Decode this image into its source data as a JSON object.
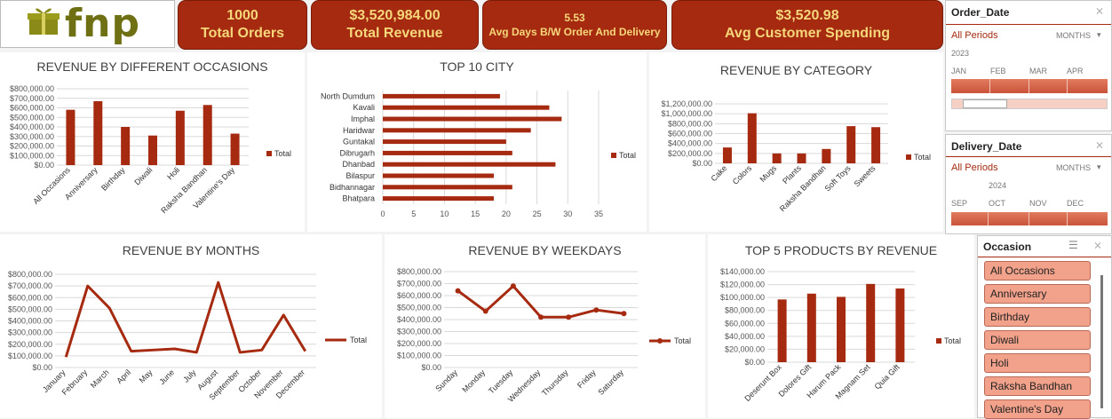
{
  "logo": {
    "text": "fnp"
  },
  "kpis": [
    {
      "value": "1000",
      "label": "Total Orders"
    },
    {
      "value": "$3,520,984.00",
      "label": "Total Revenue"
    },
    {
      "value": "5.53",
      "label": "Avg Days B/W Order And Delivery"
    },
    {
      "value": "$3,520.98",
      "label": "Avg Customer Spending"
    }
  ],
  "colors": {
    "accent": "#a52a10",
    "kpi_text": "#f5d77a",
    "slicer_fill": "#f2a18a"
  },
  "chart_data": [
    {
      "id": "occasions",
      "type": "bar",
      "title": "REVENUE BY DIFFERENT OCCASIONS",
      "categories": [
        "All Occasions",
        "Anniversary",
        "Birthday",
        "Diwali",
        "Holi",
        "Raksha Bandhan",
        "Valentine's Day"
      ],
      "series": [
        {
          "name": "Total",
          "values": [
            580000,
            670000,
            400000,
            310000,
            570000,
            630000,
            330000
          ]
        }
      ],
      "ylim": [
        0,
        800000
      ],
      "yticks": [
        "$0.00",
        "$100,000.00",
        "$200,000.00",
        "$300,000.00",
        "$400,000.00",
        "$500,000.00",
        "$600,000.00",
        "$700,000.00",
        "$800,000.00"
      ],
      "legend": "right"
    },
    {
      "id": "city",
      "type": "bar",
      "orientation": "horizontal",
      "title": "TOP 10 CITY",
      "categories": [
        "North Dumdum",
        "Kavali",
        "Imphal",
        "Haridwar",
        "Guntakal",
        "Dibrugarh",
        "Dhanbad",
        "Bilaspur",
        "Bidhannagar",
        "Bhatpara"
      ],
      "series": [
        {
          "name": "Total",
          "values": [
            19,
            27,
            29,
            24,
            20,
            21,
            28,
            18,
            21,
            18
          ]
        }
      ],
      "xlim": [
        0,
        35
      ],
      "xticks": [
        "0",
        "5",
        "10",
        "15",
        "20",
        "25",
        "30",
        "35"
      ],
      "legend": "right"
    },
    {
      "id": "category",
      "type": "bar",
      "title": "REVENUE BY CATEGORY",
      "categories": [
        "Cake",
        "Colors",
        "Mugs",
        "Plants",
        "Raksha Bandhan",
        "Soft Toys",
        "Sweets"
      ],
      "series": [
        {
          "name": "Total",
          "values": [
            320000,
            1010000,
            200000,
            200000,
            290000,
            750000,
            730000
          ]
        }
      ],
      "ylim": [
        0,
        1200000
      ],
      "yticks": [
        "$0.00",
        "$200,000.00",
        "$400,000.00",
        "$600,000.00",
        "$800,000.00",
        "$1,000,000.00",
        "$1,200,000.00"
      ],
      "legend": "right"
    },
    {
      "id": "months",
      "type": "line",
      "title": "REVENUE BY MONTHS",
      "categories": [
        "January",
        "February",
        "March",
        "April",
        "May",
        "June",
        "July",
        "August",
        "September",
        "October",
        "November",
        "December"
      ],
      "series": [
        {
          "name": "Total",
          "values": [
            90000,
            700000,
            510000,
            140000,
            150000,
            160000,
            130000,
            730000,
            130000,
            150000,
            450000,
            140000
          ]
        }
      ],
      "ylim": [
        0,
        800000
      ],
      "yticks": [
        "$0.00",
        "$100,000.00",
        "$200,000.00",
        "$300,000.00",
        "$400,000.00",
        "$500,000.00",
        "$600,000.00",
        "$700,000.00",
        "$800,000.00"
      ],
      "markers": false,
      "legend": "right"
    },
    {
      "id": "weekdays",
      "type": "line",
      "title": "REVENUE BY WEEKDAYS",
      "categories": [
        "Sunday",
        "Monday",
        "Tuesday",
        "Wednesday",
        "Thursday",
        "Friday",
        "Saturday"
      ],
      "series": [
        {
          "name": "Total",
          "values": [
            640000,
            470000,
            680000,
            420000,
            420000,
            480000,
            450000
          ]
        }
      ],
      "ylim": [
        0,
        800000
      ],
      "yticks": [
        "$0.00",
        "$100,000.00",
        "$200,000.00",
        "$300,000.00",
        "$400,000.00",
        "$500,000.00",
        "$600,000.00",
        "$700,000.00",
        "$800,000.00"
      ],
      "markers": true,
      "legend": "right"
    },
    {
      "id": "products",
      "type": "bar",
      "title": "TOP 5 PRODUCTS BY REVENUE",
      "categories": [
        "Deserunt Box",
        "Dolores Gift",
        "Harum Pack",
        "Magnam Set",
        "Quia Gift"
      ],
      "series": [
        {
          "name": "Total",
          "values": [
            97000,
            106000,
            101000,
            121000,
            114000
          ]
        }
      ],
      "ylim": [
        0,
        140000
      ],
      "yticks": [
        "$0.00",
        "$20,000.00",
        "$40,000.00",
        "$60,000.00",
        "$80,000.00",
        "$100,000.00",
        "$120,000.00",
        "$140,000.00"
      ],
      "legend": "right"
    }
  ],
  "order_slicer": {
    "title": "Order_Date",
    "period": "All Periods",
    "unit": "MONTHS",
    "year": "2023",
    "months": [
      "JAN",
      "FEB",
      "MAR",
      "APR"
    ]
  },
  "delivery_slicer": {
    "title": "Delivery_Date",
    "period": "All Periods",
    "unit": "MONTHS",
    "year": "2024",
    "months": [
      "SEP",
      "OCT",
      "NOV",
      "DEC"
    ]
  },
  "occasion_slicer": {
    "title": "Occasion",
    "items": [
      "All Occasions",
      "Anniversary",
      "Birthday",
      "Diwali",
      "Holi",
      "Raksha Bandhan",
      "Valentine's Day"
    ]
  }
}
